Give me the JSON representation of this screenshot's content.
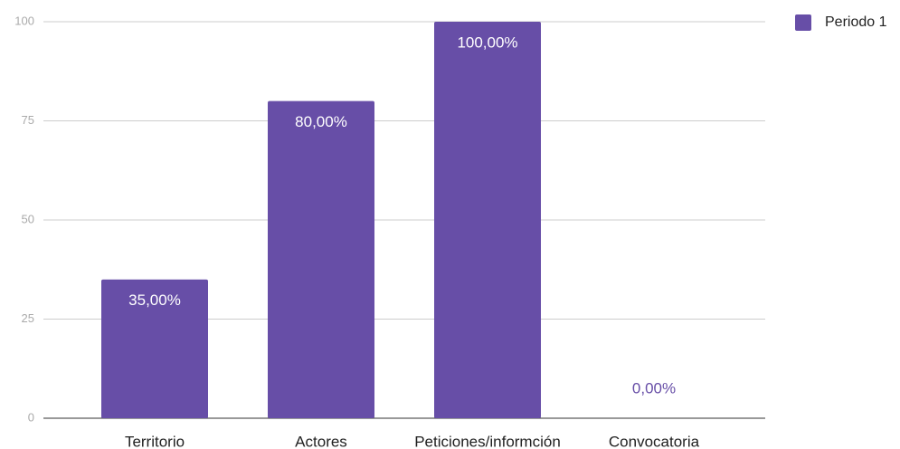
{
  "chart_data": {
    "type": "bar",
    "categories": [
      "Territorio",
      "Actores",
      "Peticiones/informción",
      "Convocatoria"
    ],
    "series": [
      {
        "name": "Periodo 1",
        "color": "#674ea7",
        "values": [
          35,
          80,
          100,
          0
        ],
        "value_labels": [
          "35,00%",
          "80,00%",
          "100,00%",
          "0,00%"
        ]
      }
    ],
    "ylim": [
      0,
      100
    ],
    "yticks": [
      0,
      25,
      50,
      75,
      100
    ],
    "grid": true,
    "legend": "right"
  }
}
